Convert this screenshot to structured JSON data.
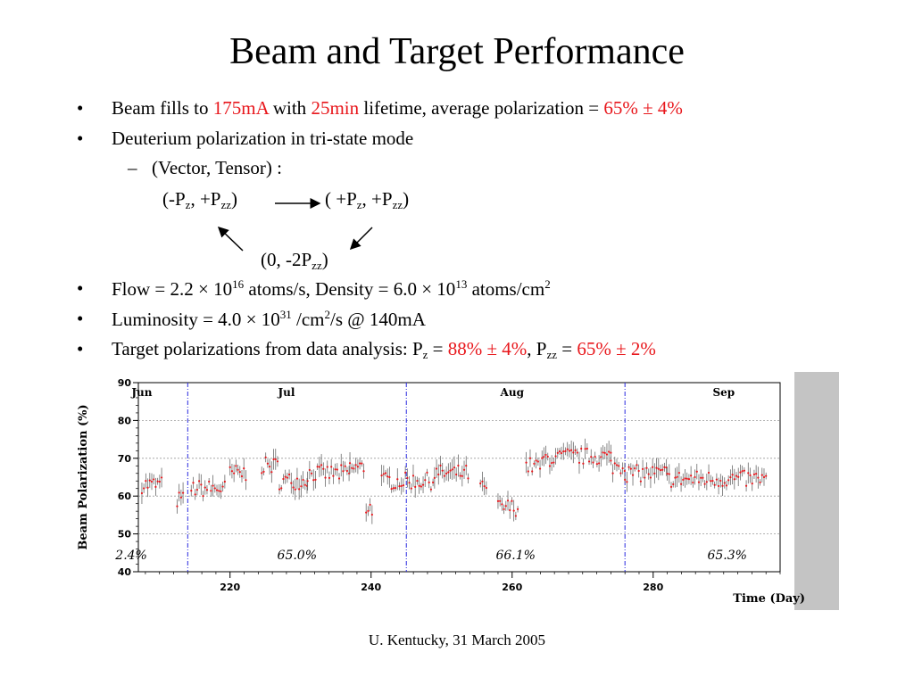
{
  "slide": {
    "title": "Beam and Target Performance",
    "footer": "U. Kentucky, 31 March 2005"
  },
  "bullets": {
    "b1": {
      "p1": "Beam fills to ",
      "v1": "175mA",
      "p2": " with ",
      "v2": "25min",
      "p3": " lifetime, average polarization = ",
      "v3": "65% ± 4%"
    },
    "b2": {
      "text": "Deuterium polarization in tri-state mode"
    },
    "sub1": {
      "text": "(Vector, Tensor) :"
    },
    "states": {
      "s1_open": "(-P",
      "s1_z": "z",
      "s1_mid": ", +P",
      "s1_zz": "zz",
      "s1_close": ")",
      "s2_open": "(  +P",
      "s2_z": "z",
      "s2_mid": ", +P",
      "s2_zz": "zz",
      "s2_close": ")",
      "s3_open": "(0, -2P",
      "s3_zz": "zz",
      "s3_close": ")"
    },
    "b3": {
      "p1": "Flow = 2.2 × 10",
      "e1": "16",
      "p2": " atoms/s, Density = 6.0 × 10",
      "e2": "13",
      "p3": " atoms/cm",
      "e3": "2"
    },
    "b4": {
      "p1": "Luminosity = 4.0 × 10",
      "e1": "31",
      "p2": " /cm",
      "e2": "2",
      "p3": "/s  @  140mA"
    },
    "b5": {
      "p1": "Target polarizations from data analysis: P",
      "s1": "z",
      "p2": " = ",
      "v1": "88% ± 4%",
      "p3": ", P",
      "s2": "zz",
      "p4": " = ",
      "v2": "65% ± 2%"
    },
    "marker": "•",
    "dash": "–"
  },
  "chart_data": {
    "type": "scatter",
    "ylabel": "Beam Polarization (%)",
    "xlabel": "Time (Day)",
    "ylim": [
      40,
      90
    ],
    "xlim": [
      207,
      298
    ],
    "xticks": [
      220,
      240,
      260,
      280
    ],
    "yticks": [
      40,
      50,
      60,
      70,
      80,
      90
    ],
    "grid": true,
    "months": [
      {
        "label": "Jun",
        "x": 207.5
      },
      {
        "label": "Jul",
        "x": 228
      },
      {
        "label": "Aug",
        "x": 260
      },
      {
        "label": "Sep",
        "x": 290
      }
    ],
    "month_boundaries": [
      214,
      245,
      276
    ],
    "period_averages": [
      {
        "label": "2.4%",
        "x": 206
      },
      {
        "label": "65.0%",
        "x": 229.5
      },
      {
        "label": "66.1%",
        "x": 260.5
      },
      {
        "label": "65.3%",
        "x": 290.5
      }
    ],
    "segments": [
      {
        "from": 207.5,
        "to": 210.5,
        "base": 63
      },
      {
        "from": 212.5,
        "to": 213.5,
        "base": 59
      },
      {
        "from": 214.5,
        "to": 219.5,
        "base": 62
      },
      {
        "from": 220,
        "to": 222.5,
        "base": 66
      },
      {
        "from": 224.5,
        "to": 227,
        "base": 68
      },
      {
        "from": 227,
        "to": 231,
        "base": 64
      },
      {
        "from": 231,
        "to": 237,
        "base": 66
      },
      {
        "from": 237,
        "to": 239,
        "base": 67.5
      },
      {
        "from": 239.3,
        "to": 240.3,
        "base": 57
      },
      {
        "from": 241.5,
        "to": 249,
        "base": 64
      },
      {
        "from": 249,
        "to": 254,
        "base": 66
      },
      {
        "from": 255.5,
        "to": 256.5,
        "base": 62
      },
      {
        "from": 258,
        "to": 261,
        "base": 57
      },
      {
        "from": 262,
        "to": 264.5,
        "base": 68
      },
      {
        "from": 264.5,
        "to": 267,
        "base": 70
      },
      {
        "from": 267,
        "to": 274,
        "base": 70.5
      },
      {
        "from": 274,
        "to": 276,
        "base": 68
      },
      {
        "from": 276,
        "to": 282,
        "base": 66
      },
      {
        "from": 282,
        "to": 296,
        "base": 64.5
      }
    ],
    "colors": {
      "point": "#e8161b",
      "errorbar": "#6a6a6a",
      "boundary": "#2a2ae0",
      "grid": "#9a9a9a",
      "frame": "#c4c4c4"
    }
  }
}
